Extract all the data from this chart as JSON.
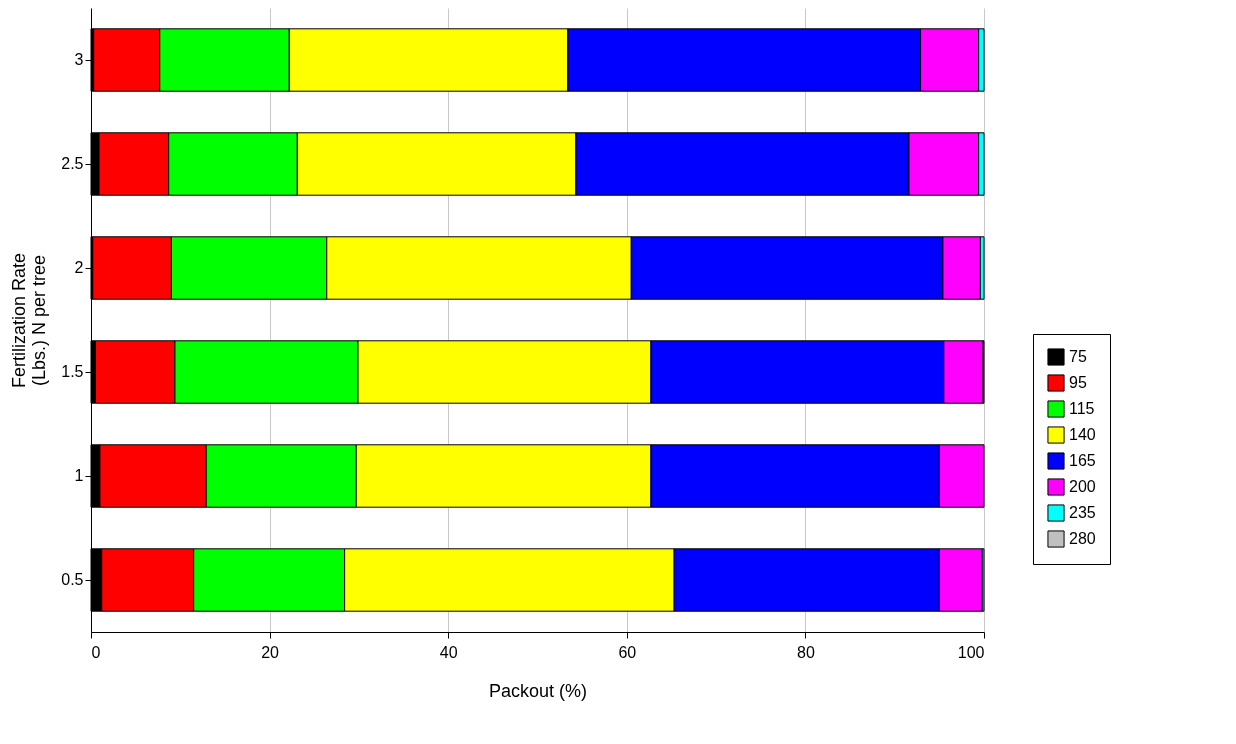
{
  "chart_data": {
    "type": "bar",
    "orientation": "horizontal",
    "stacked": true,
    "xlabel": "Packout (%)",
    "ylabel": "Fertilization Rate (Lbs.) N per tree",
    "categories": [
      "3",
      "2.5",
      "2",
      "1.5",
      "1",
      "0.5"
    ],
    "series": [
      {
        "name": "75",
        "color": "#000000",
        "values": [
          0.3,
          0.9,
          0.2,
          0.5,
          1.0,
          1.2
        ]
      },
      {
        "name": "95",
        "color": "#ff0000",
        "values": [
          7.4,
          7.8,
          8.8,
          8.9,
          11.9,
          10.3
        ]
      },
      {
        "name": "115",
        "color": "#00ff00",
        "values": [
          14.5,
          14.4,
          17.4,
          20.5,
          16.8,
          16.9
        ]
      },
      {
        "name": "140",
        "color": "#ffff00",
        "values": [
          31.2,
          31.2,
          34.1,
          32.8,
          33.0,
          36.9
        ]
      },
      {
        "name": "165",
        "color": "#0000ff",
        "values": [
          39.5,
          37.3,
          34.9,
          32.8,
          32.3,
          29.7
        ]
      },
      {
        "name": "200",
        "color": "#ff00ff",
        "values": [
          6.5,
          7.8,
          4.2,
          4.4,
          5.0,
          4.8
        ]
      },
      {
        "name": "235",
        "color": "#00ffff",
        "values": [
          0.6,
          0.6,
          0.4,
          0.1,
          null,
          0.2
        ]
      },
      {
        "name": "280",
        "color": "#c0c0c0",
        "values": [
          null,
          null,
          null,
          null,
          null,
          null
        ]
      }
    ],
    "xlim": [
      0,
      100
    ],
    "xticks": [
      0,
      20,
      40,
      60,
      80,
      100
    ],
    "grid": "x",
    "legend": "right"
  }
}
